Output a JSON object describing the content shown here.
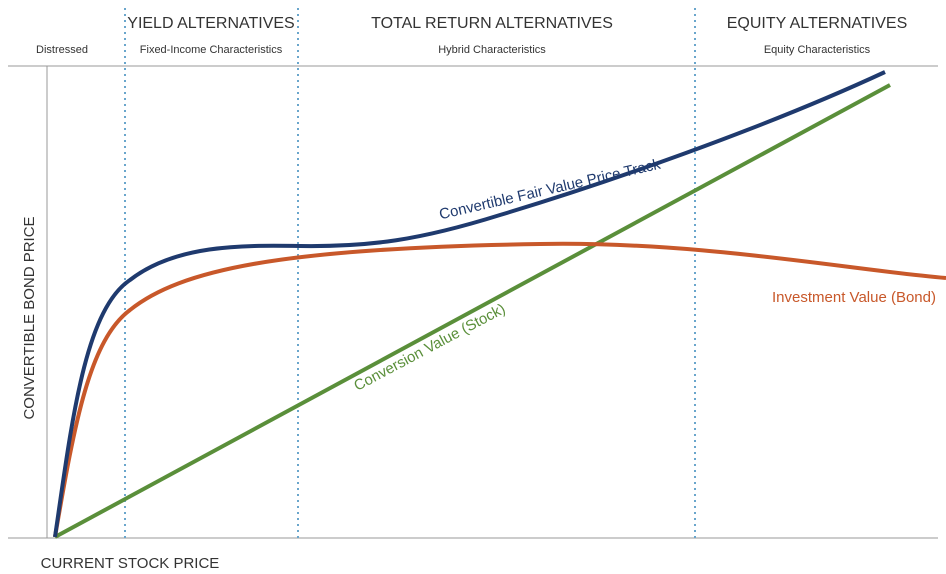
{
  "regions": [
    {
      "subtitle": "Distressed"
    },
    {
      "title": "YIELD ALTERNATIVES",
      "subtitle": "Fixed-Income Characteristics"
    },
    {
      "title": "TOTAL RETURN ALTERNATIVES",
      "subtitle": "Hybrid Characteristics"
    },
    {
      "title": "EQUITY ALTERNATIVES",
      "subtitle": "Equity Characteristics"
    }
  ],
  "curves": {
    "fair_value": "Convertible Fair Value Price Track",
    "investment_value": "Investment Value (Bond)",
    "conversion_value": "Conversion Value (Stock)"
  },
  "axes": {
    "y_label": "CONVERTIBLE BOND PRICE",
    "x_label": "CURRENT STOCK PRICE"
  }
}
